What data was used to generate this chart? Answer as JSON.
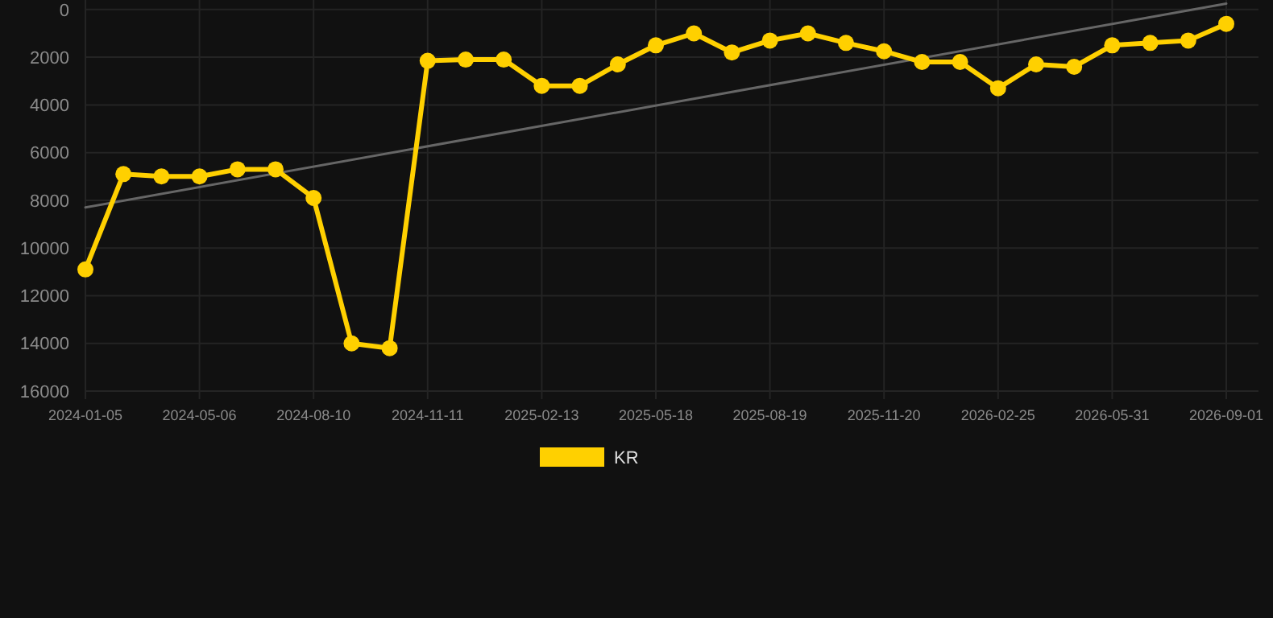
{
  "chart_data": {
    "type": "line",
    "categories": [
      "2024-01-05",
      null,
      null,
      "2024-05-06",
      null,
      null,
      "2024-08-10",
      null,
      null,
      "2024-11-11",
      null,
      null,
      "2025-02-13",
      null,
      null,
      "2025-05-18",
      null,
      null,
      "2025-08-19",
      null,
      null,
      "2025-11-20",
      null,
      null,
      "2026-02-25",
      null,
      null,
      "2026-05-31",
      null,
      null,
      "2026-09-01"
    ],
    "ylim": [
      16000,
      -400
    ],
    "yticks": [
      0,
      2000,
      4000,
      6000,
      8000,
      10000,
      12000,
      14000,
      16000
    ],
    "grid": true,
    "legend": "bottom",
    "marker": "circle",
    "series": [
      {
        "name": "KR",
        "color": "#ffd000",
        "values": [
          10900,
          6900,
          7000,
          7000,
          6700,
          6700,
          7900,
          14000,
          14200,
          2150,
          2100,
          2100,
          3200,
          3200,
          2300,
          1500,
          1000,
          1800,
          1300,
          1000,
          1400,
          1750,
          2200,
          2200,
          3300,
          2300,
          2400,
          1500,
          1400,
          1300,
          600
        ]
      },
      {
        "type": "line",
        "color": "#666666",
        "marker": "none",
        "values": [
          8300,
          null,
          null,
          null,
          null,
          null,
          null,
          null,
          null,
          null,
          null,
          null,
          null,
          null,
          null,
          null,
          null,
          null,
          null,
          null,
          null,
          null,
          null,
          null,
          null,
          null,
          null,
          null,
          null,
          null,
          -250
        ]
      }
    ]
  }
}
